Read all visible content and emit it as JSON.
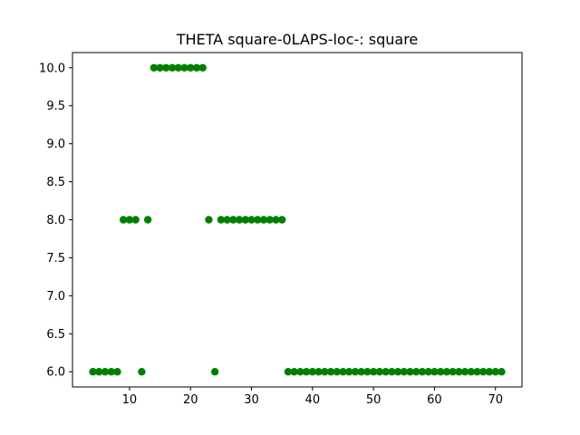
{
  "chart_data": {
    "type": "scatter",
    "title": "THETA square-0LAPS-loc-: square",
    "xlabel": "",
    "ylabel": "",
    "xlim": [
      0.65,
      74.35
    ],
    "ylim": [
      5.8,
      10.2
    ],
    "x_ticks": [
      10,
      20,
      30,
      40,
      50,
      60,
      70
    ],
    "y_ticks": [
      6.0,
      6.5,
      7.0,
      7.5,
      8.0,
      8.5,
      9.0,
      9.5,
      10.0
    ],
    "x_tick_labels": [
      "10",
      "20",
      "30",
      "40",
      "50",
      "60",
      "70"
    ],
    "y_tick_labels": [
      "6.0",
      "6.5",
      "7.0",
      "7.5",
      "8.0",
      "8.5",
      "9.0",
      "9.5",
      "10.0"
    ],
    "grid": false,
    "marker_color": "#008000",
    "series": [
      {
        "x": [
          4,
          5,
          6,
          7,
          8,
          9,
          10,
          11,
          12,
          13,
          14,
          15,
          16,
          17,
          18,
          19,
          20,
          21,
          22,
          23,
          24,
          25,
          26,
          27,
          28,
          29,
          30,
          31,
          32,
          33,
          34,
          35,
          36,
          37,
          38,
          39,
          40,
          41,
          42,
          43,
          44,
          45,
          46,
          47,
          48,
          49,
          50,
          51,
          52,
          53,
          54,
          55,
          56,
          57,
          58,
          59,
          60,
          61,
          62,
          63,
          64,
          65,
          66,
          67,
          68,
          69,
          70,
          71
        ],
        "y": [
          6,
          6,
          6,
          6,
          6,
          8,
          8,
          8,
          6,
          8,
          10,
          10,
          10,
          10,
          10,
          10,
          10,
          10,
          10,
          8,
          6,
          8,
          8,
          8,
          8,
          8,
          8,
          8,
          8,
          8,
          8,
          8,
          6,
          6,
          6,
          6,
          6,
          6,
          6,
          6,
          6,
          6,
          6,
          6,
          6,
          6,
          6,
          6,
          6,
          6,
          6,
          6,
          6,
          6,
          6,
          6,
          6,
          6,
          6,
          6,
          6,
          6,
          6,
          6,
          6,
          6,
          6,
          6
        ]
      }
    ]
  }
}
